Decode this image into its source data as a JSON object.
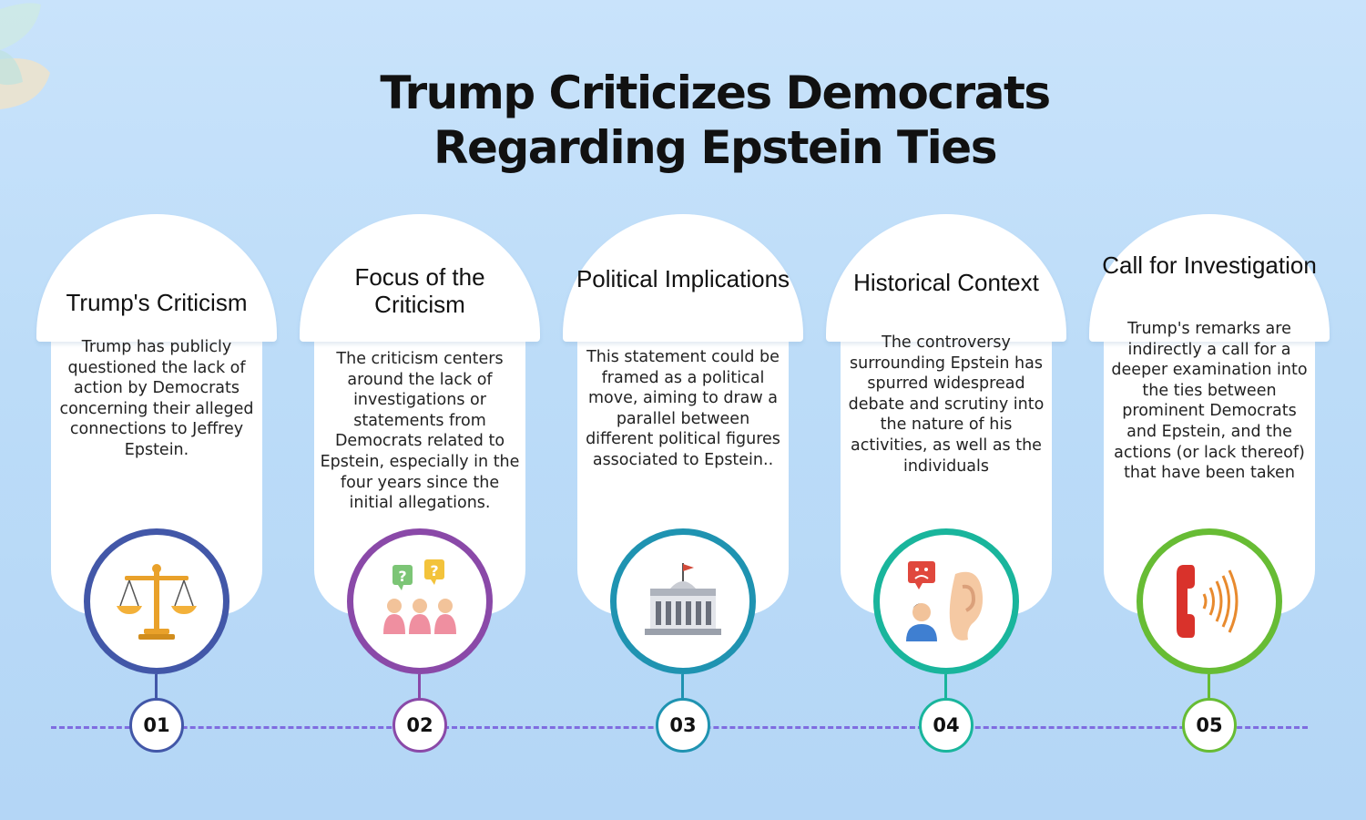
{
  "title": "Trump Criticizes Democrats Regarding Epstein Ties",
  "steps": [
    {
      "num": "01",
      "title": "Trump's Criticism",
      "description": "Trump has publicly questioned the lack of action by Democrats concerning their alleged connections to Jeffrey Epstein.",
      "icon": "scales-of-justice-icon",
      "color": "#4257a8"
    },
    {
      "num": "02",
      "title": "Focus of the Criticism",
      "description": "The criticism centers around the lack of investigations or statements from Democrats related to Epstein, especially in the four years since the initial allegations.",
      "icon": "people-questions-icon",
      "color": "#8a49a8"
    },
    {
      "num": "03",
      "title": "Political Implications",
      "description": "This statement could be framed as a political move, aiming to draw a parallel between different political figures associated to Epstein..",
      "icon": "government-building-icon",
      "color": "#1f93b1"
    },
    {
      "num": "04",
      "title": "Historical Context",
      "description": "The controversy surrounding Epstein has spurred widespread debate and scrutiny into the nature of his activities, as well as the individuals",
      "icon": "listening-ear-icon",
      "color": "#19b59c"
    },
    {
      "num": "05",
      "title": "Call for Investigation",
      "description": "Trump's remarks are indirectly a call for a deeper examination into the ties between prominent Democrats and Epstein, and the actions (or lack thereof) that have been taken",
      "icon": "phone-call-icon",
      "color": "#67bc34"
    }
  ]
}
